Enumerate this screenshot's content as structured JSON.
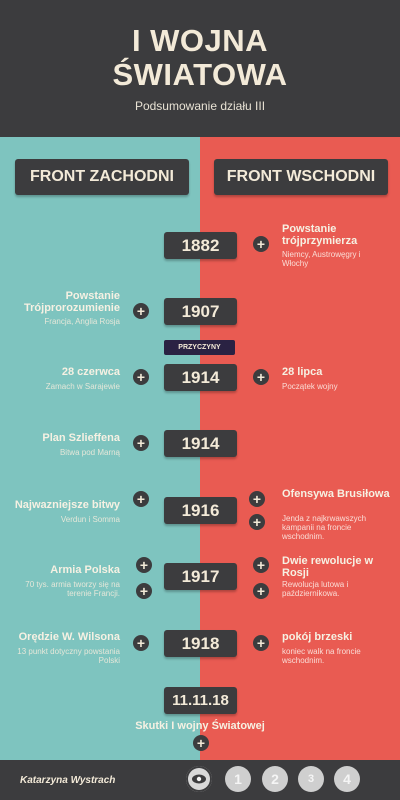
{
  "header": {
    "title_line1": "I WOJNA",
    "title_line2": "ŚWIATOWA",
    "subtitle": "Podsumowanie działu III"
  },
  "fronts": {
    "left": "FRONT ZACHODNI",
    "right": "FRONT WSCHODNI"
  },
  "years": [
    "1882",
    "1907",
    "1914",
    "1914",
    "1916",
    "1917",
    "1918",
    "11.11.18"
  ],
  "badge": "PRZYCZYNY",
  "events": {
    "e1882_right_title": "Powstanie trójprzymierza",
    "e1882_right_desc": "Niemcy, Austrowęgry i Włochy",
    "e1907_left_title": "Powstanie Trójprorozumienie",
    "e1907_left_desc": "Francja, Anglia Rosja",
    "e1914a_left_title": "28 czerwca",
    "e1914a_left_desc": "Zamach w Sarajewie",
    "e1914a_right_title": "28 lipca",
    "e1914a_right_desc": "Początek wojny",
    "e1914b_left_title": "Plan Szlieffena",
    "e1914b_left_desc": "Bitwa pod Marną",
    "e1916_left_title": "Najwazniejsze bitwy",
    "e1916_left_desc": "Verdun i Somma",
    "e1916_right_title": "Ofensywa Brusiłowa",
    "e1916_right_desc": "Jenda z najkrwawszych kampanii na froncie wschodnim.",
    "e1917_left_title": "Armia Polska",
    "e1917_left_desc": "70 tys. armia tworzy się na terenie Francji.",
    "e1917_right_title": "Dwie rewolucje w Rosji",
    "e1917_right_desc": "Rewolucja lutowa i październikowa.",
    "e1918_left_title": "Orędzie W. Wilsona",
    "e1918_left_desc": "13 punkt dotyczny powstania Polski",
    "e1918_right_title": "pokój brzeski",
    "e1918_right_desc": "koniec walk na froncie wschodnim."
  },
  "skutki": "Skutki I wojny Światowej",
  "footer": {
    "author": "Katarzyna Wystrach",
    "nav": [
      "1",
      "2",
      "3",
      "4"
    ]
  },
  "icons": {
    "plus": "+",
    "eye": "eye-icon"
  },
  "colors": {
    "dark": "#3c3c3e",
    "left_panel": "#7ec4bf",
    "right_panel": "#e95b52",
    "cream": "#f3ead8",
    "badge": "#2a2243"
  }
}
